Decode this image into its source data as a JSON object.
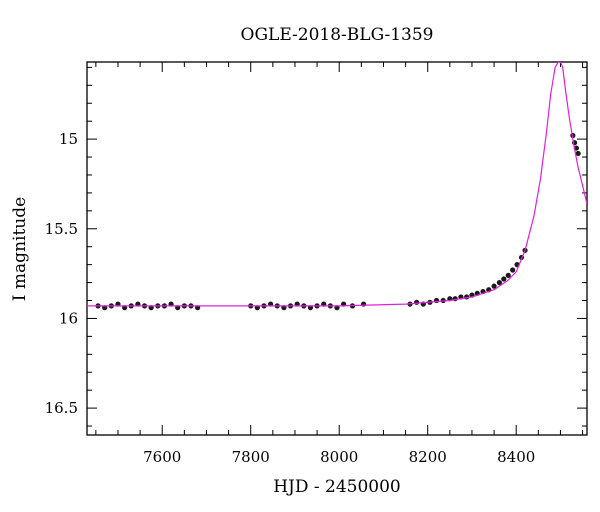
{
  "chart_data": {
    "type": "scatter",
    "title": "OGLE-2018-BLG-1359",
    "xlabel": "HJD - 2450000",
    "ylabel": "I magnitude",
    "xlim": [
      7430,
      8560
    ],
    "ylim": [
      16.65,
      14.57
    ],
    "y_inverted": true,
    "x_ticks": [
      7600,
      7800,
      8000,
      8200,
      8400
    ],
    "y_ticks": [
      15,
      15.5,
      16,
      16.5
    ],
    "grid": false,
    "legend": "none",
    "series": [
      {
        "kind": "points",
        "color": "#1a1a1a",
        "x": [
          7455,
          7470,
          7485,
          7500,
          7515,
          7530,
          7545,
          7560,
          7575,
          7590,
          7605,
          7620,
          7635,
          7650,
          7665,
          7680,
          7800,
          7815,
          7830,
          7845,
          7860,
          7875,
          7890,
          7905,
          7920,
          7935,
          7950,
          7965,
          7980,
          7995,
          8010,
          8030,
          8055,
          8160,
          8175,
          8190,
          8205,
          8220,
          8235,
          8250,
          8262,
          8275,
          8288,
          8300,
          8312,
          8325,
          8338,
          8350,
          8362,
          8372,
          8382,
          8392,
          8402,
          8412,
          8420,
          8528,
          8532,
          8536,
          8540
        ],
        "y": [
          15.93,
          15.94,
          15.93,
          15.92,
          15.94,
          15.93,
          15.92,
          15.93,
          15.94,
          15.93,
          15.93,
          15.92,
          15.94,
          15.93,
          15.93,
          15.94,
          15.93,
          15.94,
          15.93,
          15.92,
          15.93,
          15.94,
          15.93,
          15.92,
          15.93,
          15.94,
          15.93,
          15.92,
          15.93,
          15.94,
          15.92,
          15.93,
          15.92,
          15.92,
          15.91,
          15.92,
          15.91,
          15.9,
          15.9,
          15.89,
          15.89,
          15.88,
          15.88,
          15.87,
          15.86,
          15.85,
          15.84,
          15.82,
          15.8,
          15.78,
          15.76,
          15.73,
          15.7,
          15.66,
          15.62,
          14.98,
          15.02,
          15.05,
          15.08
        ]
      },
      {
        "kind": "model-curve",
        "color": "#e020e0",
        "x": [
          7430,
          7600,
          7800,
          8000,
          8150,
          8250,
          8300,
          8350,
          8380,
          8400,
          8420,
          8440,
          8455,
          8468,
          8478,
          8488,
          8495,
          8500,
          8505,
          8512,
          8520,
          8530,
          8540,
          8550,
          8560
        ],
        "y": [
          15.93,
          15.93,
          15.93,
          15.93,
          15.92,
          15.9,
          15.88,
          15.84,
          15.79,
          15.74,
          15.62,
          15.43,
          15.22,
          14.97,
          14.75,
          14.6,
          14.57,
          14.57,
          14.6,
          14.74,
          14.88,
          15.03,
          15.16,
          15.26,
          15.36
        ]
      }
    ]
  }
}
